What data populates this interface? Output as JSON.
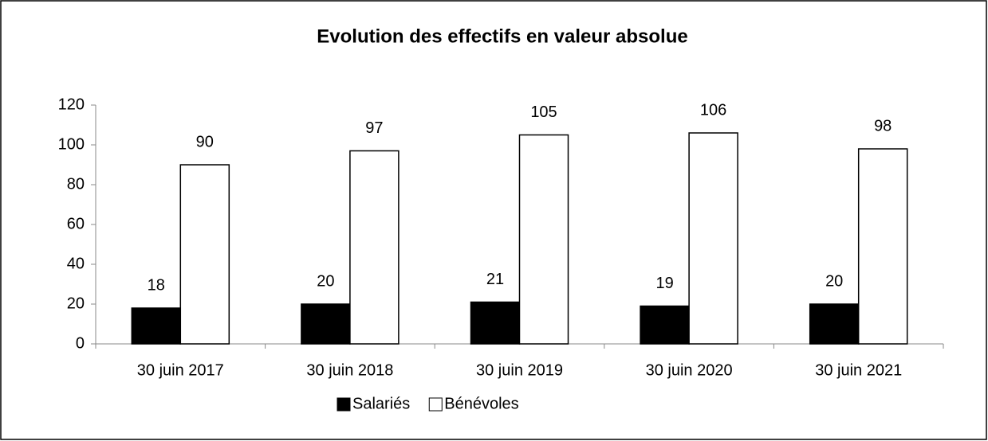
{
  "chart_data": {
    "type": "bar",
    "title": "Evolution des effectifs en valeur absolue",
    "categories": [
      "30 juin 2017",
      "30 juin 2018",
      "30 juin 2019",
      "30 juin 2020",
      "30 juin 2021"
    ],
    "series": [
      {
        "name": "Salariés",
        "color": "#000000",
        "values": [
          18,
          20,
          21,
          19,
          20
        ]
      },
      {
        "name": "Bénévoles",
        "color": "#ffffff",
        "values": [
          90,
          97,
          105,
          106,
          98
        ]
      }
    ],
    "ylim": [
      0,
      120
    ],
    "yticks": [
      0,
      20,
      40,
      60,
      80,
      100,
      120
    ],
    "grid": false,
    "legend": "bottom"
  }
}
